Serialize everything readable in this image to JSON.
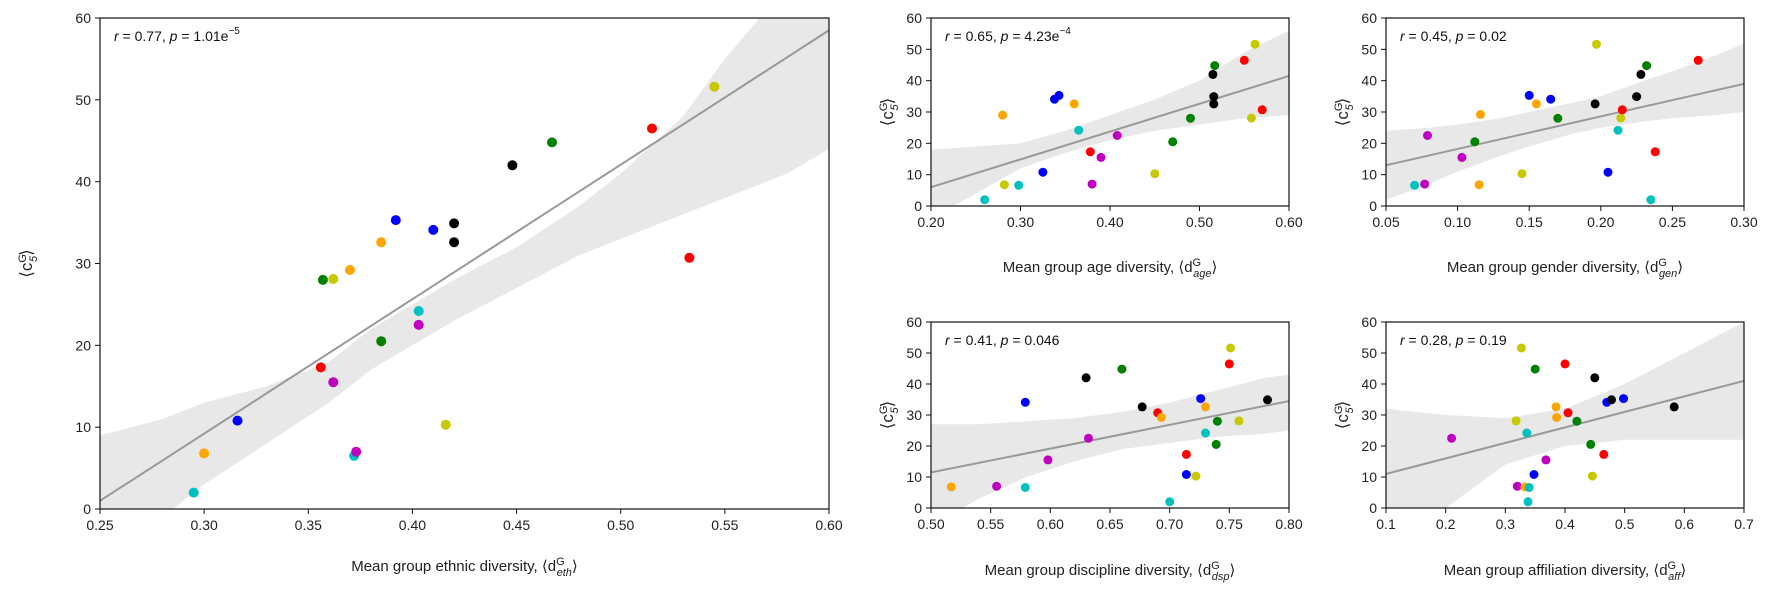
{
  "charts": [
    {
      "annotation": "r = 0.77, p = 1.01e−5",
      "xlabel": "Mean group ethnic diversity, ⟨d^G_eth⟩",
      "ylabel": "⟨c^G_5⟩",
      "chart_data": {
        "type": "scatter",
        "xlim": [
          0.25,
          0.6
        ],
        "ylim": [
          0,
          60
        ],
        "xticks": [
          0.25,
          0.3,
          0.35,
          0.4,
          0.45,
          0.5,
          0.55,
          0.6
        ],
        "yticks": [
          0,
          10,
          20,
          30,
          40,
          50,
          60
        ],
        "fit": {
          "x0": 0.25,
          "y0": 1.0,
          "x1": 0.6,
          "y1": 58.5
        },
        "ci": {
          "x": [
            0.25,
            0.28,
            0.3,
            0.33,
            0.36,
            0.38,
            0.4,
            0.42,
            0.45,
            0.48,
            0.5,
            0.53,
            0.55,
            0.58,
            0.6
          ],
          "lower": [
            -5,
            -1,
            3,
            8,
            13,
            17,
            20,
            23,
            27,
            31,
            33,
            36,
            38,
            41,
            44
          ],
          "upper": [
            9,
            11,
            13,
            15,
            18,
            22,
            25,
            28,
            32,
            37,
            41,
            48,
            55,
            64,
            70
          ]
        },
        "points": [
          {
            "x": 0.295,
            "y": 2,
            "color": "#00c0c0"
          },
          {
            "x": 0.3,
            "y": 6.8,
            "color": "#ffa500"
          },
          {
            "x": 0.316,
            "y": 10.8,
            "color": "#0000ff"
          },
          {
            "x": 0.356,
            "y": 17.3,
            "color": "#ff0000"
          },
          {
            "x": 0.357,
            "y": 28,
            "color": "#008000"
          },
          {
            "x": 0.362,
            "y": 15.5,
            "color": "#c000c0"
          },
          {
            "x": 0.362,
            "y": 28.1,
            "color": "#c8c800"
          },
          {
            "x": 0.37,
            "y": 29.2,
            "color": "#ffa500"
          },
          {
            "x": 0.372,
            "y": 6.5,
            "color": "#00c0c0"
          },
          {
            "x": 0.373,
            "y": 7,
            "color": "#c000c0"
          },
          {
            "x": 0.385,
            "y": 20.5,
            "color": "#008000"
          },
          {
            "x": 0.385,
            "y": 32.6,
            "color": "#ffa500"
          },
          {
            "x": 0.392,
            "y": 35.3,
            "color": "#0000ff"
          },
          {
            "x": 0.403,
            "y": 24.2,
            "color": "#00c0c0"
          },
          {
            "x": 0.403,
            "y": 22.5,
            "color": "#c000c0"
          },
          {
            "x": 0.41,
            "y": 34.1,
            "color": "#0000ff"
          },
          {
            "x": 0.416,
            "y": 10.3,
            "color": "#c8c800"
          },
          {
            "x": 0.42,
            "y": 34.9,
            "color": "#000000"
          },
          {
            "x": 0.42,
            "y": 32.6,
            "color": "#000000"
          },
          {
            "x": 0.448,
            "y": 42,
            "color": "#000000"
          },
          {
            "x": 0.467,
            "y": 44.8,
            "color": "#008000"
          },
          {
            "x": 0.515,
            "y": 46.5,
            "color": "#ff0000"
          },
          {
            "x": 0.533,
            "y": 30.7,
            "color": "#ff0000"
          },
          {
            "x": 0.545,
            "y": 51.6,
            "color": "#c8c800"
          }
        ]
      }
    },
    {
      "annotation": "r = 0.65, p = 4.23e−4",
      "xlabel": "Mean group age diversity, ⟨d^G_age⟩",
      "ylabel": "⟨c^G_5⟩",
      "chart_data": {
        "type": "scatter",
        "xlim": [
          0.2,
          0.6
        ],
        "ylim": [
          0,
          60
        ],
        "xticks": [
          0.2,
          0.3,
          0.4,
          0.5,
          0.6
        ],
        "yticks": [
          0,
          10,
          20,
          30,
          40,
          50,
          60
        ],
        "fit": {
          "x0": 0.2,
          "y0": 6.0,
          "x1": 0.6,
          "y1": 41.5
        },
        "ci": {
          "x": [
            0.2,
            0.25,
            0.3,
            0.35,
            0.4,
            0.45,
            0.5,
            0.55,
            0.6
          ],
          "lower": [
            -4,
            4,
            12,
            17,
            21,
            24,
            26,
            28,
            29
          ],
          "upper": [
            18,
            19,
            20,
            24,
            29,
            34,
            40,
            49,
            56
          ]
        },
        "points": [
          {
            "x": 0.26,
            "y": 2,
            "color": "#00c0c0"
          },
          {
            "x": 0.28,
            "y": 29,
            "color": "#ffa500"
          },
          {
            "x": 0.282,
            "y": 6.8,
            "color": "#c8c800"
          },
          {
            "x": 0.298,
            "y": 6.6,
            "color": "#00c0c0"
          },
          {
            "x": 0.325,
            "y": 10.8,
            "color": "#0000ff"
          },
          {
            "x": 0.338,
            "y": 34.1,
            "color": "#0000ff"
          },
          {
            "x": 0.343,
            "y": 35.3,
            "color": "#0000ff"
          },
          {
            "x": 0.36,
            "y": 32.6,
            "color": "#ffa500"
          },
          {
            "x": 0.365,
            "y": 24.2,
            "color": "#00c0c0"
          },
          {
            "x": 0.378,
            "y": 17.3,
            "color": "#ff0000"
          },
          {
            "x": 0.38,
            "y": 7,
            "color": "#c000c0"
          },
          {
            "x": 0.39,
            "y": 15.5,
            "color": "#c000c0"
          },
          {
            "x": 0.408,
            "y": 22.5,
            "color": "#c000c0"
          },
          {
            "x": 0.45,
            "y": 10.3,
            "color": "#c8c800"
          },
          {
            "x": 0.47,
            "y": 20.5,
            "color": "#008000"
          },
          {
            "x": 0.49,
            "y": 28,
            "color": "#008000"
          },
          {
            "x": 0.515,
            "y": 42,
            "color": "#000000"
          },
          {
            "x": 0.516,
            "y": 34.9,
            "color": "#000000"
          },
          {
            "x": 0.516,
            "y": 32.6,
            "color": "#000000"
          },
          {
            "x": 0.517,
            "y": 44.8,
            "color": "#008000"
          },
          {
            "x": 0.55,
            "y": 46.5,
            "color": "#ff0000"
          },
          {
            "x": 0.558,
            "y": 28.1,
            "color": "#c8c800"
          },
          {
            "x": 0.562,
            "y": 51.6,
            "color": "#c8c800"
          },
          {
            "x": 0.57,
            "y": 30.7,
            "color": "#ff0000"
          }
        ]
      }
    },
    {
      "annotation": "r = 0.45, p = 0.02",
      "xlabel": "Mean group gender diversity, ⟨d^G_gen⟩",
      "ylabel": "⟨c^G_5⟩",
      "chart_data": {
        "type": "scatter",
        "xlim": [
          0.05,
          0.3
        ],
        "ylim": [
          0,
          60
        ],
        "xticks": [
          0.05,
          0.1,
          0.15,
          0.2,
          0.25,
          0.3
        ],
        "yticks": [
          0,
          10,
          20,
          30,
          40,
          50,
          60
        ],
        "fit": {
          "x0": 0.05,
          "y0": 13.0,
          "x1": 0.3,
          "y1": 39.0
        },
        "ci": {
          "x": [
            0.05,
            0.08,
            0.1,
            0.13,
            0.15,
            0.18,
            0.2,
            0.23,
            0.25,
            0.28,
            0.3
          ],
          "lower": [
            2,
            7,
            11,
            16,
            19,
            23,
            25,
            27,
            28,
            29,
            30
          ],
          "upper": [
            24,
            25,
            26,
            28,
            30,
            33,
            35,
            40,
            43,
            48,
            52
          ]
        },
        "points": [
          {
            "x": 0.07,
            "y": 6.6,
            "color": "#00c0c0"
          },
          {
            "x": 0.077,
            "y": 7,
            "color": "#c000c0"
          },
          {
            "x": 0.079,
            "y": 22.5,
            "color": "#c000c0"
          },
          {
            "x": 0.103,
            "y": 15.5,
            "color": "#c000c0"
          },
          {
            "x": 0.112,
            "y": 20.5,
            "color": "#008000"
          },
          {
            "x": 0.115,
            "y": 6.8,
            "color": "#ffa500"
          },
          {
            "x": 0.116,
            "y": 29.2,
            "color": "#ffa500"
          },
          {
            "x": 0.145,
            "y": 10.3,
            "color": "#c8c800"
          },
          {
            "x": 0.15,
            "y": 35.3,
            "color": "#0000ff"
          },
          {
            "x": 0.155,
            "y": 32.6,
            "color": "#ffa500"
          },
          {
            "x": 0.165,
            "y": 34.1,
            "color": "#0000ff"
          },
          {
            "x": 0.17,
            "y": 28,
            "color": "#008000"
          },
          {
            "x": 0.196,
            "y": 32.6,
            "color": "#000000"
          },
          {
            "x": 0.197,
            "y": 51.6,
            "color": "#c8c800"
          },
          {
            "x": 0.205,
            "y": 10.8,
            "color": "#0000ff"
          },
          {
            "x": 0.212,
            "y": 24.2,
            "color": "#00c0c0"
          },
          {
            "x": 0.214,
            "y": 28.1,
            "color": "#c8c800"
          },
          {
            "x": 0.215,
            "y": 30.7,
            "color": "#ff0000"
          },
          {
            "x": 0.225,
            "y": 34.9,
            "color": "#000000"
          },
          {
            "x": 0.228,
            "y": 42,
            "color": "#000000"
          },
          {
            "x": 0.232,
            "y": 44.8,
            "color": "#008000"
          },
          {
            "x": 0.235,
            "y": 2,
            "color": "#00c0c0"
          },
          {
            "x": 0.238,
            "y": 17.3,
            "color": "#ff0000"
          },
          {
            "x": 0.268,
            "y": 46.5,
            "color": "#ff0000"
          }
        ]
      }
    },
    {
      "annotation": "r = 0.41, p = 0.046",
      "xlabel": "Mean group discipline diversity, ⟨d^G_dsp⟩",
      "ylabel": "⟨c^G_5⟩",
      "chart_data": {
        "type": "scatter",
        "xlim": [
          0.5,
          0.8
        ],
        "ylim": [
          0,
          60
        ],
        "xticks": [
          0.5,
          0.55,
          0.6,
          0.65,
          0.7,
          0.75,
          0.8
        ],
        "yticks": [
          0,
          10,
          20,
          30,
          40,
          50,
          60
        ],
        "fit": {
          "x0": 0.5,
          "y0": 11.5,
          "x1": 0.8,
          "y1": 34.5
        },
        "ci": {
          "x": [
            0.5,
            0.54,
            0.58,
            0.62,
            0.66,
            0.7,
            0.74,
            0.78,
            0.8
          ],
          "lower": [
            -6,
            3,
            10,
            15,
            19,
            21,
            23,
            24,
            25
          ],
          "upper": [
            27,
            27,
            28,
            29,
            31,
            34,
            38,
            42,
            43
          ]
        },
        "points": [
          {
            "x": 0.517,
            "y": 6.8,
            "color": "#ffa500"
          },
          {
            "x": 0.555,
            "y": 7,
            "color": "#c000c0"
          },
          {
            "x": 0.579,
            "y": 34.1,
            "color": "#0000ff"
          },
          {
            "x": 0.579,
            "y": 6.6,
            "color": "#00c0c0"
          },
          {
            "x": 0.598,
            "y": 15.5,
            "color": "#c000c0"
          },
          {
            "x": 0.63,
            "y": 42,
            "color": "#000000"
          },
          {
            "x": 0.632,
            "y": 22.5,
            "color": "#c000c0"
          },
          {
            "x": 0.66,
            "y": 44.8,
            "color": "#008000"
          },
          {
            "x": 0.677,
            "y": 32.6,
            "color": "#000000"
          },
          {
            "x": 0.69,
            "y": 30.7,
            "color": "#ff0000"
          },
          {
            "x": 0.693,
            "y": 29.2,
            "color": "#ffa500"
          },
          {
            "x": 0.7,
            "y": 2,
            "color": "#00c0c0"
          },
          {
            "x": 0.714,
            "y": 10.8,
            "color": "#0000ff"
          },
          {
            "x": 0.714,
            "y": 17.3,
            "color": "#ff0000"
          },
          {
            "x": 0.722,
            "y": 10.3,
            "color": "#c8c800"
          },
          {
            "x": 0.726,
            "y": 35.3,
            "color": "#0000ff"
          },
          {
            "x": 0.73,
            "y": 32.6,
            "color": "#ffa500"
          },
          {
            "x": 0.73,
            "y": 24.2,
            "color": "#00c0c0"
          },
          {
            "x": 0.739,
            "y": 20.5,
            "color": "#008000"
          },
          {
            "x": 0.74,
            "y": 28,
            "color": "#008000"
          },
          {
            "x": 0.75,
            "y": 46.5,
            "color": "#ff0000"
          },
          {
            "x": 0.751,
            "y": 51.6,
            "color": "#c8c800"
          },
          {
            "x": 0.758,
            "y": 28.1,
            "color": "#c8c800"
          },
          {
            "x": 0.782,
            "y": 34.9,
            "color": "#000000"
          }
        ]
      }
    },
    {
      "annotation": "r = 0.28, p = 0.19",
      "xlabel": "Mean group affiliation diversity, ⟨d^G_aff⟩",
      "ylabel": "⟨c^G_5⟩",
      "chart_data": {
        "type": "scatter",
        "xlim": [
          0.1,
          0.7
        ],
        "ylim": [
          0,
          60
        ],
        "xticks": [
          0.1,
          0.2,
          0.3,
          0.4,
          0.5,
          0.6,
          0.7
        ],
        "yticks": [
          0,
          10,
          20,
          30,
          40,
          50,
          60
        ],
        "fit": {
          "x0": 0.1,
          "y0": 11.0,
          "x1": 0.7,
          "y1": 41.0
        },
        "ci": {
          "x": [
            0.1,
            0.2,
            0.3,
            0.4,
            0.5,
            0.6,
            0.7
          ],
          "lower": [
            -20,
            0,
            14,
            20,
            22,
            22,
            22
          ],
          "upper": [
            32,
            30,
            29,
            32,
            40,
            50,
            60
          ]
        },
        "points": [
          {
            "x": 0.21,
            "y": 22.5,
            "color": "#c000c0"
          },
          {
            "x": 0.318,
            "y": 28.1,
            "color": "#c8c800"
          },
          {
            "x": 0.32,
            "y": 7,
            "color": "#c000c0"
          },
          {
            "x": 0.327,
            "y": 51.6,
            "color": "#c8c800"
          },
          {
            "x": 0.333,
            "y": 6.8,
            "color": "#ffa500"
          },
          {
            "x": 0.336,
            "y": 24.2,
            "color": "#00c0c0"
          },
          {
            "x": 0.338,
            "y": 2,
            "color": "#00c0c0"
          },
          {
            "x": 0.34,
            "y": 6.6,
            "color": "#00c0c0"
          },
          {
            "x": 0.348,
            "y": 10.8,
            "color": "#0000ff"
          },
          {
            "x": 0.35,
            "y": 44.8,
            "color": "#008000"
          },
          {
            "x": 0.368,
            "y": 15.5,
            "color": "#c000c0"
          },
          {
            "x": 0.385,
            "y": 32.6,
            "color": "#ffa500"
          },
          {
            "x": 0.386,
            "y": 29.2,
            "color": "#ffa500"
          },
          {
            "x": 0.4,
            "y": 46.5,
            "color": "#ff0000"
          },
          {
            "x": 0.405,
            "y": 30.7,
            "color": "#ff0000"
          },
          {
            "x": 0.42,
            "y": 28,
            "color": "#008000"
          },
          {
            "x": 0.443,
            "y": 20.5,
            "color": "#008000"
          },
          {
            "x": 0.446,
            "y": 10.3,
            "color": "#c8c800"
          },
          {
            "x": 0.45,
            "y": 42,
            "color": "#000000"
          },
          {
            "x": 0.465,
            "y": 17.3,
            "color": "#ff0000"
          },
          {
            "x": 0.47,
            "y": 34.1,
            "color": "#0000ff"
          },
          {
            "x": 0.478,
            "y": 34.9,
            "color": "#000000"
          },
          {
            "x": 0.498,
            "y": 35.3,
            "color": "#0000ff"
          },
          {
            "x": 0.583,
            "y": 32.6,
            "color": "#000000"
          }
        ]
      }
    }
  ]
}
